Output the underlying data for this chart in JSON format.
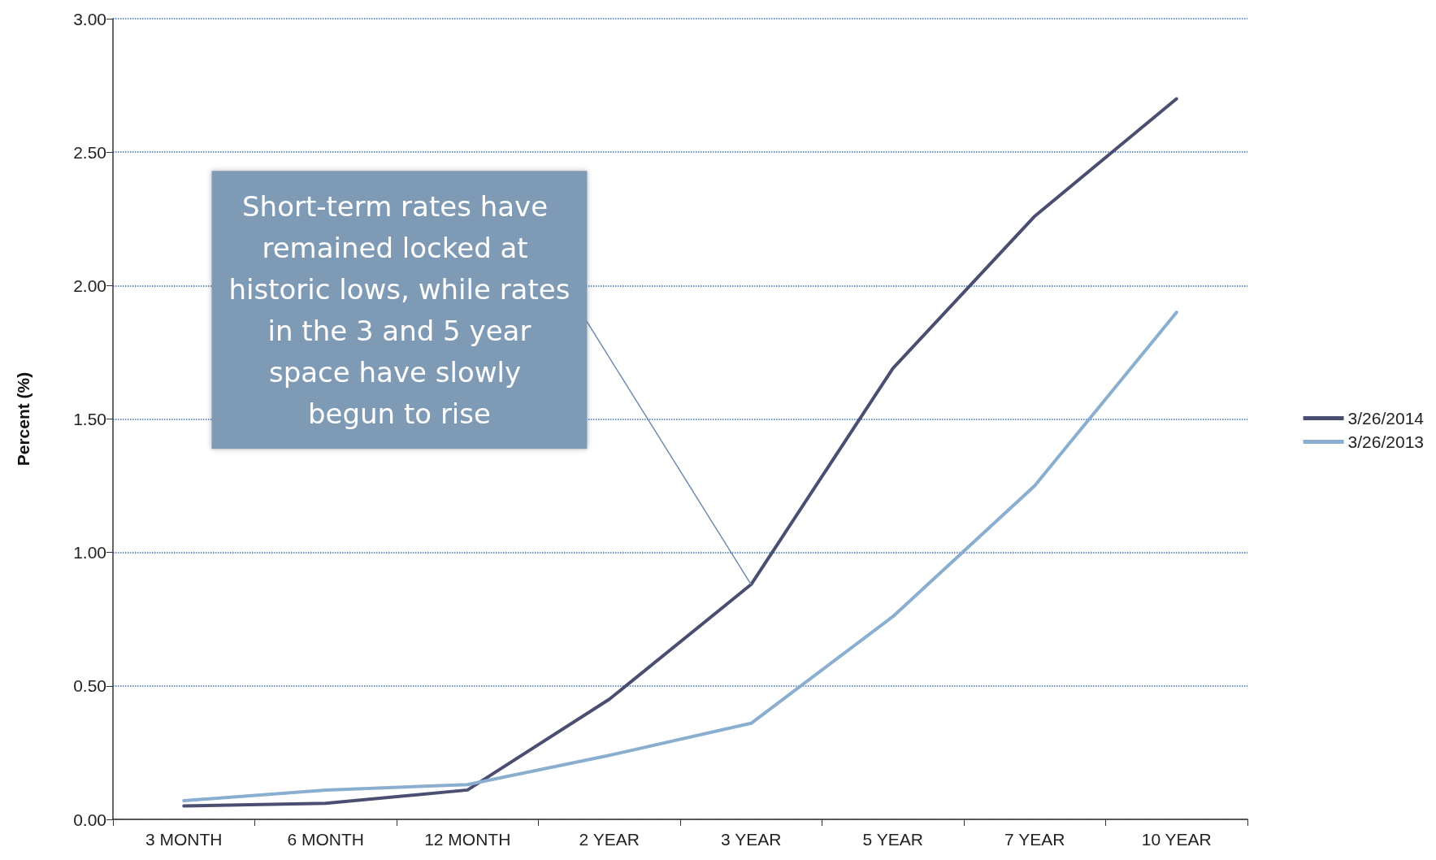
{
  "chart_data": {
    "type": "line",
    "ylabel": "Percent (%)",
    "categories": [
      "3 MONTH",
      "6 MONTH",
      "12 MONTH",
      "2 YEAR",
      "3 YEAR",
      "5 YEAR",
      "7 YEAR",
      "10 YEAR"
    ],
    "series": [
      {
        "name": "3/26/2014",
        "color": "#4a4f72",
        "values": [
          0.05,
          0.06,
          0.11,
          0.45,
          0.88,
          1.69,
          2.26,
          2.7
        ]
      },
      {
        "name": "3/26/2013",
        "color": "#8aaed0",
        "values": [
          0.07,
          0.11,
          0.13,
          0.24,
          0.36,
          0.76,
          1.25,
          1.9
        ]
      }
    ],
    "ylim": [
      0,
      3
    ],
    "yticks": [
      {
        "value": 0,
        "label": "0.00"
      },
      {
        "value": 0.5,
        "label": "0.50"
      },
      {
        "value": 1,
        "label": "1.00"
      },
      {
        "value": 1.5,
        "label": "1.50"
      },
      {
        "value": 2,
        "label": "2.00"
      },
      {
        "value": 2.5,
        "label": "2.50"
      },
      {
        "value": 3,
        "label": "3.00"
      }
    ],
    "grid": "y",
    "legend": "right",
    "marker": "none",
    "line_style": "solid",
    "annotations": [
      {
        "text": "Short-term rates have remained locked at historic lows, while rates in the 3 and 5 year space have slowly begun to rise",
        "x": "3 YEAR",
        "y": 0.88
      }
    ]
  }
}
